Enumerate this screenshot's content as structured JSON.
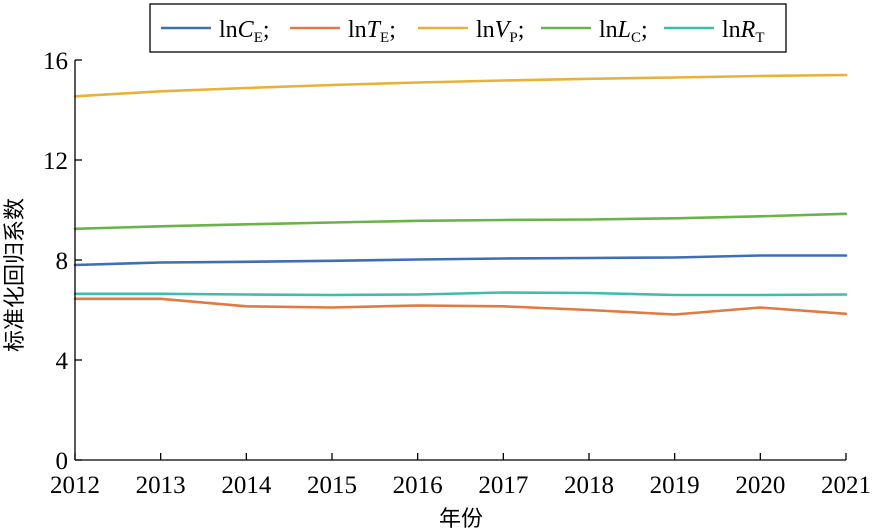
{
  "chart_data": {
    "type": "line",
    "xlabel": "年份",
    "ylabel": "标准化回归系数",
    "xlim": [
      2012,
      2021
    ],
    "ylim": [
      0,
      16
    ],
    "xticks": [
      "2012",
      "2013",
      "2014",
      "2015",
      "2016",
      "2017",
      "2018",
      "2019",
      "2020",
      "2021"
    ],
    "yticks": [
      "0",
      "4",
      "8",
      "12",
      "16"
    ],
    "grid": false,
    "legend_position": "top",
    "x": [
      2012,
      2013,
      2014,
      2015,
      2016,
      2017,
      2018,
      2019,
      2020,
      2021
    ],
    "series": [
      {
        "name": "lnCE",
        "legend": {
          "prefix": "ln",
          "var": "C",
          "sub": "E",
          "sep": ";"
        },
        "color": "#3F6EB5",
        "values": [
          7.8,
          7.9,
          7.93,
          7.97,
          8.02,
          8.06,
          8.08,
          8.1,
          8.18,
          8.18
        ]
      },
      {
        "name": "lnTE",
        "legend": {
          "prefix": "ln",
          "var": "T",
          "sub": "E",
          "sep": ";"
        },
        "color": "#E07A3F",
        "values": [
          6.45,
          6.45,
          6.15,
          6.1,
          6.18,
          6.15,
          6.0,
          5.82,
          6.1,
          5.85
        ]
      },
      {
        "name": "lnVP",
        "legend": {
          "prefix": "ln",
          "var": "V",
          "sub": "P",
          "sep": ";"
        },
        "color": "#E8B23A",
        "values": [
          14.55,
          14.75,
          14.88,
          15.0,
          15.1,
          15.18,
          15.25,
          15.3,
          15.36,
          15.4
        ]
      },
      {
        "name": "lnLC",
        "legend": {
          "prefix": "ln",
          "var": "L",
          "sub": "C",
          "sep": ";"
        },
        "color": "#6BB24A",
        "values": [
          9.25,
          9.35,
          9.43,
          9.5,
          9.57,
          9.6,
          9.62,
          9.67,
          9.75,
          9.85
        ]
      },
      {
        "name": "lnRT",
        "legend": {
          "prefix": "ln",
          "var": "R",
          "sub": "T",
          "sep": ""
        },
        "color": "#3DBDB0",
        "values": [
          6.65,
          6.65,
          6.62,
          6.6,
          6.62,
          6.7,
          6.68,
          6.6,
          6.6,
          6.62
        ]
      }
    ]
  }
}
